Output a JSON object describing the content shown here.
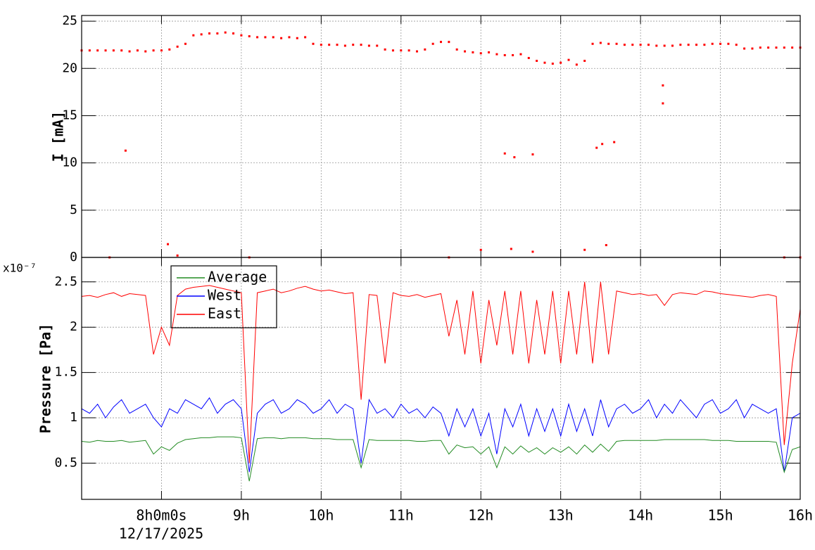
{
  "chart_data": [
    {
      "type": "scatter",
      "ylabel": "I [mA]",
      "color": "#ff0000",
      "grid": true,
      "xlim": [
        7,
        16
      ],
      "ylim": [
        0,
        25.6
      ],
      "yticks": [
        0,
        5,
        10,
        15,
        20,
        25
      ],
      "xticks": [
        8,
        9,
        10,
        11,
        12,
        13,
        14,
        15,
        16
      ],
      "x": [
        7.0,
        7.1,
        7.2,
        7.3,
        7.4,
        7.5,
        7.6,
        7.7,
        7.8,
        7.9,
        8.0,
        8.1,
        8.2,
        8.3,
        8.4,
        8.5,
        8.6,
        8.7,
        8.8,
        8.9,
        9.0,
        9.1,
        9.2,
        9.3,
        9.4,
        9.5,
        9.6,
        9.7,
        9.8,
        9.9,
        10.0,
        10.1,
        10.2,
        10.3,
        10.4,
        10.5,
        10.6,
        10.7,
        10.8,
        10.9,
        11.0,
        11.1,
        11.2,
        11.3,
        11.4,
        11.5,
        11.6,
        11.7,
        11.8,
        11.9,
        12.0,
        12.1,
        12.2,
        12.3,
        12.4,
        12.5,
        12.6,
        12.7,
        12.8,
        12.9,
        13.0,
        13.1,
        13.2,
        13.3,
        13.4,
        13.5,
        13.6,
        13.7,
        13.8,
        13.9,
        14.0,
        14.1,
        14.2,
        14.3,
        14.4,
        14.5,
        14.6,
        14.7,
        14.8,
        14.9,
        15.0,
        15.1,
        15.2,
        15.3,
        15.4,
        15.5,
        15.6,
        15.7,
        15.8,
        15.9,
        16.0,
        7.55,
        8.08,
        8.2,
        12.0,
        12.38,
        12.3,
        12.42,
        12.65,
        12.65,
        13.3,
        13.45,
        13.52,
        13.57,
        13.67,
        14.28,
        14.28,
        7.35,
        9.1,
        11.6,
        15.8,
        16.0
      ],
      "values": [
        21.9,
        21.9,
        21.9,
        21.9,
        21.9,
        21.9,
        21.8,
        21.9,
        21.8,
        21.9,
        21.9,
        22.0,
        22.3,
        22.6,
        23.5,
        23.6,
        23.7,
        23.7,
        23.8,
        23.7,
        23.5,
        23.4,
        23.3,
        23.3,
        23.3,
        23.2,
        23.3,
        23.2,
        23.3,
        22.6,
        22.5,
        22.5,
        22.5,
        22.4,
        22.5,
        22.5,
        22.4,
        22.4,
        22.0,
        21.9,
        21.9,
        21.9,
        21.8,
        22.0,
        22.6,
        22.8,
        22.8,
        22.0,
        21.8,
        21.7,
        21.6,
        21.7,
        21.5,
        21.4,
        21.4,
        21.5,
        21.1,
        20.8,
        20.6,
        20.5,
        20.6,
        20.9,
        20.4,
        20.8,
        22.6,
        22.7,
        22.6,
        22.6,
        22.5,
        22.5,
        22.5,
        22.5,
        22.4,
        22.4,
        22.4,
        22.5,
        22.5,
        22.5,
        22.5,
        22.6,
        22.6,
        22.6,
        22.5,
        22.1,
        22.1,
        22.2,
        22.2,
        22.2,
        22.2,
        22.2,
        22.2,
        11.3,
        1.4,
        0.2,
        0.8,
        0.9,
        11,
        10.6,
        10.9,
        0.6,
        0.8,
        11.6,
        12,
        1.3,
        12.2,
        18.2,
        16.3,
        0,
        0,
        0,
        0,
        0
      ]
    },
    {
      "type": "line",
      "ylabel": "Pressure [Pa]",
      "y_scale_label": "x10⁻⁷",
      "x_date": "12/17/2025",
      "grid": true,
      "legend": "top-left",
      "xlim": [
        7,
        16
      ],
      "ylim": [
        0.1,
        2.77
      ],
      "yticks": [
        0.5,
        1,
        1.5,
        2,
        2.5
      ],
      "xticks": [
        {
          "value": 8,
          "label": "8h0m0s"
        },
        {
          "value": 9,
          "label": "9h"
        },
        {
          "value": 10,
          "label": "10h"
        },
        {
          "value": 11,
          "label": "11h"
        },
        {
          "value": 12,
          "label": "12h"
        },
        {
          "value": 13,
          "label": "13h"
        },
        {
          "value": 14,
          "label": "14h"
        },
        {
          "value": 15,
          "label": "15h"
        },
        {
          "value": 16,
          "label": "16h"
        }
      ],
      "x": [
        7.0,
        7.1,
        7.2,
        7.3,
        7.4,
        7.5,
        7.6,
        7.7,
        7.8,
        7.9,
        8.0,
        8.1,
        8.2,
        8.3,
        8.4,
        8.5,
        8.6,
        8.7,
        8.8,
        8.9,
        9.0,
        9.1,
        9.2,
        9.3,
        9.4,
        9.5,
        9.6,
        9.7,
        9.8,
        9.9,
        10.0,
        10.1,
        10.2,
        10.3,
        10.4,
        10.5,
        10.6,
        10.7,
        10.8,
        10.9,
        11.0,
        11.1,
        11.2,
        11.3,
        11.4,
        11.5,
        11.6,
        11.7,
        11.8,
        11.9,
        12.0,
        12.1,
        12.2,
        12.3,
        12.4,
        12.5,
        12.6,
        12.7,
        12.8,
        12.9,
        13.0,
        13.1,
        13.2,
        13.3,
        13.4,
        13.5,
        13.6,
        13.7,
        13.8,
        13.9,
        14.0,
        14.1,
        14.2,
        14.3,
        14.4,
        14.5,
        14.6,
        14.7,
        14.8,
        14.9,
        15.0,
        15.1,
        15.2,
        15.3,
        15.4,
        15.5,
        15.6,
        15.7,
        15.8,
        15.9,
        16.0
      ],
      "series": [
        {
          "name": "Average",
          "color": "#228b22",
          "values": [
            0.74,
            0.73,
            0.75,
            0.74,
            0.74,
            0.75,
            0.73,
            0.74,
            0.75,
            0.6,
            0.68,
            0.64,
            0.72,
            0.76,
            0.77,
            0.78,
            0.78,
            0.79,
            0.79,
            0.79,
            0.78,
            0.3,
            0.77,
            0.78,
            0.78,
            0.77,
            0.78,
            0.78,
            0.78,
            0.77,
            0.77,
            0.77,
            0.76,
            0.76,
            0.76,
            0.45,
            0.76,
            0.75,
            0.75,
            0.75,
            0.75,
            0.75,
            0.74,
            0.74,
            0.75,
            0.75,
            0.6,
            0.7,
            0.67,
            0.68,
            0.6,
            0.68,
            0.45,
            0.68,
            0.6,
            0.69,
            0.62,
            0.67,
            0.6,
            0.67,
            0.62,
            0.68,
            0.6,
            0.7,
            0.62,
            0.71,
            0.63,
            0.74,
            0.75,
            0.75,
            0.75,
            0.75,
            0.75,
            0.76,
            0.76,
            0.76,
            0.76,
            0.76,
            0.76,
            0.75,
            0.75,
            0.75,
            0.74,
            0.74,
            0.74,
            0.74,
            0.74,
            0.73,
            0.4,
            0.65,
            0.68
          ]
        },
        {
          "name": "West",
          "color": "#0000ff",
          "values": [
            1.1,
            1.05,
            1.15,
            1.0,
            1.12,
            1.2,
            1.05,
            1.1,
            1.15,
            1.0,
            0.9,
            1.1,
            1.05,
            1.2,
            1.15,
            1.1,
            1.22,
            1.05,
            1.15,
            1.2,
            1.1,
            0.4,
            1.05,
            1.15,
            1.2,
            1.05,
            1.1,
            1.2,
            1.15,
            1.05,
            1.1,
            1.2,
            1.05,
            1.15,
            1.1,
            0.5,
            1.2,
            1.05,
            1.1,
            1.0,
            1.15,
            1.05,
            1.1,
            1.0,
            1.12,
            1.05,
            0.8,
            1.1,
            0.9,
            1.1,
            0.8,
            1.05,
            0.6,
            1.1,
            0.9,
            1.15,
            0.8,
            1.1,
            0.85,
            1.1,
            0.8,
            1.15,
            0.85,
            1.1,
            0.8,
            1.2,
            0.9,
            1.1,
            1.15,
            1.05,
            1.1,
            1.2,
            1.0,
            1.15,
            1.05,
            1.2,
            1.1,
            1.0,
            1.15,
            1.2,
            1.05,
            1.1,
            1.2,
            1.0,
            1.15,
            1.1,
            1.05,
            1.1,
            0.4,
            1.0,
            1.05
          ]
        },
        {
          "name": "East",
          "color": "#ff0000",
          "values": [
            2.34,
            2.35,
            2.33,
            2.36,
            2.38,
            2.34,
            2.37,
            2.36,
            2.35,
            1.7,
            2.0,
            1.8,
            2.35,
            2.42,
            2.44,
            2.45,
            2.46,
            2.44,
            2.42,
            2.4,
            2.38,
            0.5,
            2.38,
            2.4,
            2.42,
            2.38,
            2.4,
            2.43,
            2.45,
            2.42,
            2.4,
            2.41,
            2.39,
            2.37,
            2.38,
            1.2,
            2.36,
            2.35,
            1.6,
            2.38,
            2.35,
            2.34,
            2.36,
            2.33,
            2.35,
            2.37,
            1.9,
            2.3,
            1.7,
            2.4,
            1.6,
            2.3,
            1.8,
            2.4,
            1.7,
            2.4,
            1.6,
            2.3,
            1.7,
            2.4,
            1.6,
            2.4,
            1.7,
            2.5,
            1.6,
            2.5,
            1.7,
            2.4,
            2.38,
            2.36,
            2.37,
            2.35,
            2.36,
            2.24,
            2.36,
            2.38,
            2.37,
            2.36,
            2.4,
            2.39,
            2.37,
            2.36,
            2.35,
            2.34,
            2.33,
            2.35,
            2.36,
            2.34,
            0.7,
            1.6,
            2.2
          ]
        }
      ]
    }
  ]
}
